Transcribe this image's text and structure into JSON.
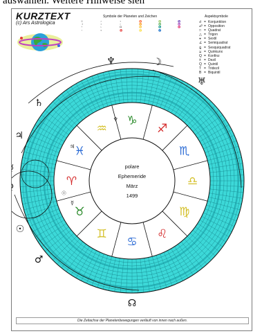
{
  "caption": "auswählen. Weitere Hinweise sieh",
  "brand": {
    "title": "KURZTEXT",
    "subtitle": "(c) Ars Astrologica"
  },
  "legend": {
    "symbols_title": "Symbole der Planeten und Zeichen",
    "aspects_title": "Aspektsymbole",
    "planet_symbols": [
      "☉",
      "☽",
      "☿",
      "♀",
      "♂",
      "♃",
      "♄",
      "♅",
      "♆",
      "♇",
      "☊"
    ],
    "sign_symbols": [
      "♈",
      "♉",
      "♊",
      "♋",
      "♌",
      "♍",
      "♎",
      "♏",
      "♐",
      "♑",
      "♒",
      "♓"
    ],
    "aspects": [
      {
        "glyph": "☌",
        "name": "Konjunktion"
      },
      {
        "glyph": "☍",
        "name": "Opposition"
      },
      {
        "glyph": "□",
        "name": "Quadrat"
      },
      {
        "glyph": "△",
        "name": "Trigon"
      },
      {
        "glyph": "⚹",
        "name": "Sextil"
      },
      {
        "glyph": "∠",
        "name": "Semiquadrat"
      },
      {
        "glyph": "⚼",
        "name": "Sesquiquadrat"
      },
      {
        "glyph": "⚺",
        "name": "Quinkunx"
      },
      {
        "glyph": "Q",
        "name": "Konfinz"
      },
      {
        "glyph": "±",
        "name": "Dezil"
      },
      {
        "glyph": "Q",
        "name": "Quintil"
      },
      {
        "glyph": "T",
        "name": "Tridezil"
      },
      {
        "glyph": "B",
        "name": "Biquintil"
      }
    ]
  },
  "center": {
    "line1": "polare",
    "line2": "Ephemeride",
    "line3": "März",
    "line4": "1499"
  },
  "outer_planets": [
    {
      "glyph": "♆",
      "angle": -100
    },
    {
      "glyph": "☽",
      "angle": -78
    },
    {
      "glyph": "♅",
      "angle": -55
    },
    {
      "glyph": "♄",
      "angle": -140
    },
    {
      "glyph": "♃",
      "angle": -158
    },
    {
      "glyph": "♀",
      "angle": 177
    },
    {
      "glyph": "☿",
      "angle": -174
    },
    {
      "glyph": "☉",
      "angle": 157
    },
    {
      "glyph": "♂",
      "angle": 140
    },
    {
      "glyph": "☊",
      "angle": 90
    }
  ],
  "zodiac_signs": [
    {
      "glyph": "♑",
      "color": "#2a8a2a"
    },
    {
      "glyph": "♐",
      "color": "#d42a2a"
    },
    {
      "glyph": "♏",
      "color": "#2a6ad4"
    },
    {
      "glyph": "♎",
      "color": "#d4c02a"
    },
    {
      "glyph": "♍",
      "color": "#d4c02a"
    },
    {
      "glyph": "♌",
      "color": "#d42a2a"
    },
    {
      "glyph": "♋",
      "color": "#2a6ad4"
    },
    {
      "glyph": "♊",
      "color": "#d4c02a"
    },
    {
      "glyph": "♉",
      "color": "#2a8a2a"
    },
    {
      "glyph": "♈",
      "color": "#d42a2a"
    },
    {
      "glyph": "♓",
      "color": "#2a6ad4"
    },
    {
      "glyph": "♒",
      "color": "#d4c02a"
    }
  ],
  "inner_markers": [
    "♆",
    "☿",
    "☉",
    "♃"
  ],
  "footer": "Die Zeitachse der Planetenbewegungen verläuft von innen nach außen.",
  "colors": {
    "ring": "#3cd8d8",
    "ring_dark": "#1aa0a8",
    "grid": "#0b6f78",
    "wheel_line": "#111111"
  }
}
